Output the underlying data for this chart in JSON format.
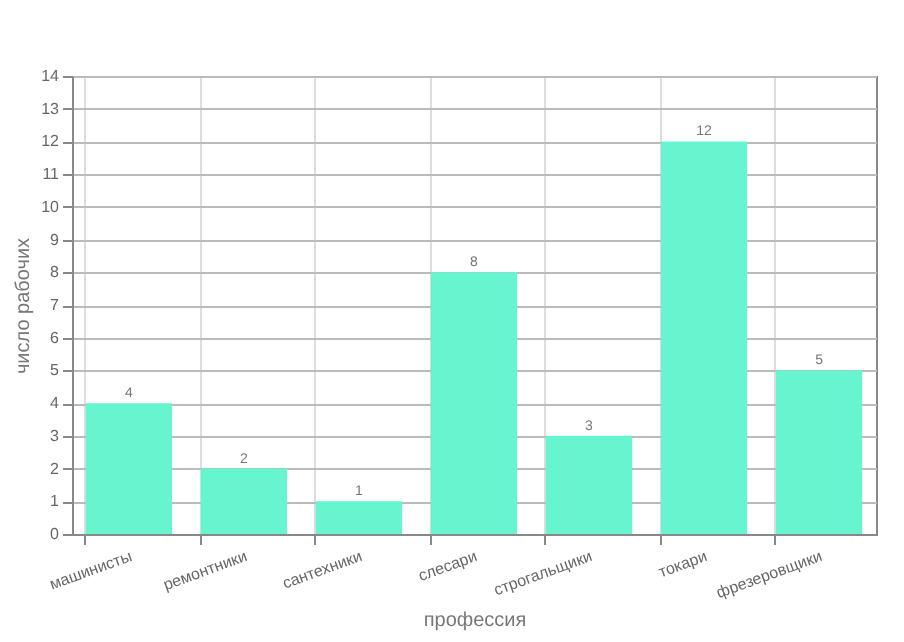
{
  "chart_data": {
    "type": "bar",
    "xlabel": "профессия",
    "ylabel": "число рабочих",
    "categories": [
      "машинисты",
      "ремонтники",
      "сантехники",
      "слесари",
      "строгальщики",
      "токари",
      "фрезеровщики"
    ],
    "values": [
      4,
      2,
      1,
      8,
      3,
      12,
      5
    ],
    "color": "#66f5cf",
    "ylim": [
      0,
      14
    ],
    "yticks": [
      0,
      1,
      2,
      3,
      4,
      5,
      6,
      7,
      8,
      9,
      10,
      11,
      12,
      13,
      14
    ],
    "grid": true,
    "data_labels": true
  }
}
